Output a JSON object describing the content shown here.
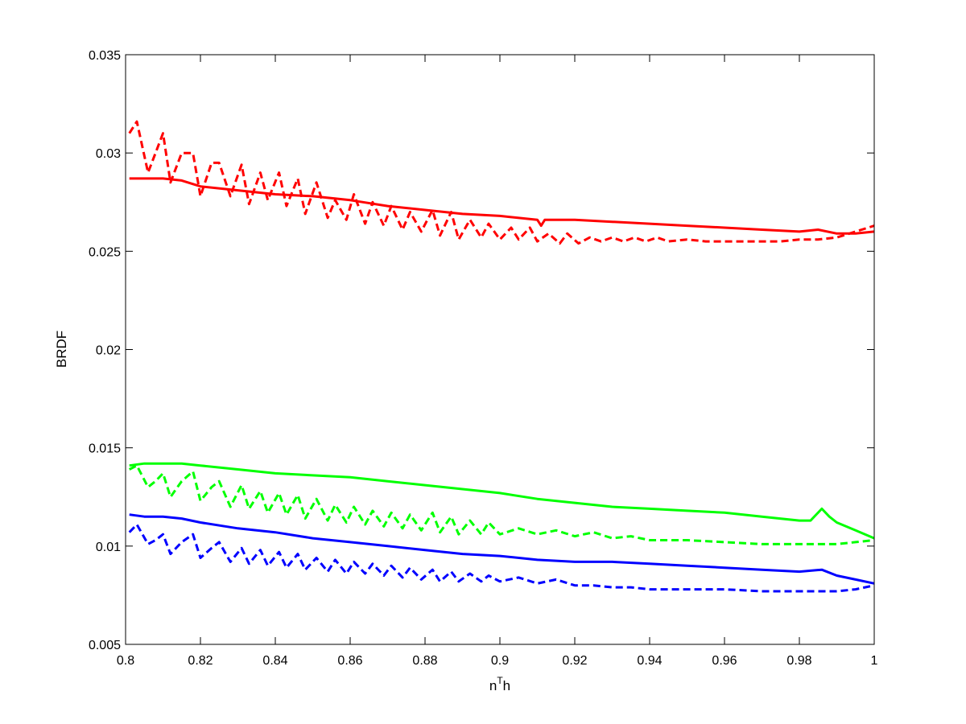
{
  "chart_data": {
    "type": "line",
    "title": "",
    "xlabel": "n",
    "xlabel_sup": "T",
    "xlabel_tail": "h",
    "ylabel": "BRDF",
    "xlim": [
      0.8,
      1.0
    ],
    "ylim": [
      0.005,
      0.035
    ],
    "xticks": [
      0.8,
      0.82,
      0.84,
      0.86,
      0.88,
      0.9,
      0.92,
      0.94,
      0.96,
      0.98,
      1.0
    ],
    "xtick_labels": [
      "0.8",
      "0.82",
      "0.84",
      "0.86",
      "0.88",
      "0.9",
      "0.92",
      "0.94",
      "0.96",
      "0.98",
      "1"
    ],
    "yticks": [
      0.005,
      0.01,
      0.015,
      0.02,
      0.025,
      0.03,
      0.035
    ],
    "ytick_labels": [
      "0.005",
      "0.01",
      "0.015",
      "0.02",
      "0.025",
      "0.03",
      "0.035"
    ],
    "grid": false,
    "legend": "none",
    "series": [
      {
        "color": "#ff0000",
        "style": "solid",
        "x": [
          0.801,
          0.805,
          0.81,
          0.815,
          0.82,
          0.83,
          0.84,
          0.85,
          0.86,
          0.87,
          0.88,
          0.89,
          0.9,
          0.91,
          0.911,
          0.912,
          0.92,
          0.93,
          0.94,
          0.95,
          0.96,
          0.97,
          0.98,
          0.985,
          0.99,
          0.995,
          1.0
        ],
        "y": [
          0.0287,
          0.0287,
          0.0287,
          0.0286,
          0.0283,
          0.0281,
          0.0279,
          0.0278,
          0.0276,
          0.0273,
          0.0271,
          0.0269,
          0.0268,
          0.0266,
          0.0263,
          0.0266,
          0.0266,
          0.0265,
          0.0264,
          0.0263,
          0.0262,
          0.0261,
          0.026,
          0.0261,
          0.0259,
          0.0259,
          0.026
        ]
      },
      {
        "color": "#ff0000",
        "style": "dashed",
        "x": [
          0.801,
          0.803,
          0.806,
          0.808,
          0.81,
          0.812,
          0.815,
          0.818,
          0.82,
          0.823,
          0.825,
          0.828,
          0.831,
          0.833,
          0.836,
          0.838,
          0.841,
          0.843,
          0.846,
          0.848,
          0.851,
          0.854,
          0.856,
          0.859,
          0.861,
          0.864,
          0.866,
          0.869,
          0.871,
          0.874,
          0.876,
          0.879,
          0.882,
          0.884,
          0.887,
          0.889,
          0.892,
          0.895,
          0.897,
          0.9,
          0.903,
          0.905,
          0.908,
          0.91,
          0.913,
          0.916,
          0.918,
          0.921,
          0.924,
          0.927,
          0.93,
          0.933,
          0.936,
          0.939,
          0.942,
          0.945,
          0.95,
          0.955,
          0.96,
          0.965,
          0.97,
          0.975,
          0.98,
          0.985,
          0.99,
          0.995,
          1.0
        ],
        "y": [
          0.031,
          0.0316,
          0.029,
          0.03,
          0.031,
          0.0285,
          0.03,
          0.03,
          0.0278,
          0.0295,
          0.0295,
          0.0278,
          0.0294,
          0.0274,
          0.029,
          0.0276,
          0.029,
          0.0273,
          0.0287,
          0.0269,
          0.0285,
          0.0267,
          0.0276,
          0.0266,
          0.0279,
          0.0264,
          0.0275,
          0.0263,
          0.0273,
          0.0261,
          0.027,
          0.026,
          0.0271,
          0.0258,
          0.027,
          0.0256,
          0.0266,
          0.0257,
          0.0264,
          0.0256,
          0.0262,
          0.0256,
          0.0262,
          0.0255,
          0.0259,
          0.0254,
          0.0259,
          0.0254,
          0.0257,
          0.0255,
          0.0257,
          0.0255,
          0.0257,
          0.0255,
          0.0257,
          0.0255,
          0.0256,
          0.0255,
          0.0255,
          0.0255,
          0.0255,
          0.0255,
          0.0256,
          0.0256,
          0.0257,
          0.026,
          0.0263
        ]
      },
      {
        "color": "#00ff00",
        "style": "solid",
        "x": [
          0.801,
          0.805,
          0.81,
          0.815,
          0.82,
          0.83,
          0.84,
          0.85,
          0.86,
          0.87,
          0.88,
          0.89,
          0.9,
          0.91,
          0.92,
          0.93,
          0.94,
          0.95,
          0.96,
          0.97,
          0.98,
          0.983,
          0.986,
          0.988,
          0.99,
          0.995,
          1.0
        ],
        "y": [
          0.0141,
          0.0142,
          0.0142,
          0.0142,
          0.0141,
          0.0139,
          0.0137,
          0.0136,
          0.0135,
          0.0133,
          0.0131,
          0.0129,
          0.0127,
          0.0124,
          0.0122,
          0.012,
          0.0119,
          0.0118,
          0.0117,
          0.0115,
          0.0113,
          0.0113,
          0.0119,
          0.0115,
          0.0112,
          0.0108,
          0.0104
        ]
      },
      {
        "color": "#00ff00",
        "style": "dashed",
        "x": [
          0.801,
          0.803,
          0.806,
          0.808,
          0.81,
          0.812,
          0.815,
          0.818,
          0.82,
          0.823,
          0.825,
          0.828,
          0.831,
          0.833,
          0.836,
          0.838,
          0.841,
          0.843,
          0.846,
          0.848,
          0.851,
          0.854,
          0.856,
          0.859,
          0.861,
          0.864,
          0.866,
          0.869,
          0.871,
          0.874,
          0.876,
          0.879,
          0.882,
          0.884,
          0.887,
          0.889,
          0.892,
          0.895,
          0.897,
          0.9,
          0.905,
          0.91,
          0.915,
          0.92,
          0.925,
          0.93,
          0.935,
          0.94,
          0.95,
          0.96,
          0.97,
          0.98,
          0.985,
          0.99,
          0.995,
          1.0
        ],
        "y": [
          0.0139,
          0.0141,
          0.013,
          0.0133,
          0.0137,
          0.0125,
          0.0133,
          0.0138,
          0.0123,
          0.013,
          0.0133,
          0.012,
          0.0131,
          0.0119,
          0.0128,
          0.0117,
          0.0127,
          0.0116,
          0.0126,
          0.0114,
          0.0124,
          0.0113,
          0.0121,
          0.0112,
          0.012,
          0.0111,
          0.0118,
          0.011,
          0.0117,
          0.0109,
          0.0116,
          0.0108,
          0.0117,
          0.0107,
          0.0115,
          0.0106,
          0.0113,
          0.0106,
          0.0112,
          0.0106,
          0.0109,
          0.0106,
          0.0108,
          0.0105,
          0.0107,
          0.0104,
          0.0105,
          0.0103,
          0.0103,
          0.0102,
          0.0101,
          0.0101,
          0.0101,
          0.0101,
          0.0102,
          0.0103
        ]
      },
      {
        "color": "#0000ff",
        "style": "solid",
        "x": [
          0.801,
          0.805,
          0.81,
          0.815,
          0.82,
          0.83,
          0.84,
          0.85,
          0.86,
          0.87,
          0.88,
          0.89,
          0.9,
          0.91,
          0.92,
          0.93,
          0.94,
          0.95,
          0.96,
          0.97,
          0.98,
          0.986,
          0.99,
          0.995,
          1.0
        ],
        "y": [
          0.0116,
          0.0115,
          0.0115,
          0.0114,
          0.0112,
          0.0109,
          0.0107,
          0.0104,
          0.0102,
          0.01,
          0.0098,
          0.0096,
          0.0095,
          0.0093,
          0.0092,
          0.0092,
          0.0091,
          0.009,
          0.0089,
          0.0088,
          0.0087,
          0.0088,
          0.0085,
          0.0083,
          0.0081
        ]
      },
      {
        "color": "#0000ff",
        "style": "dashed",
        "x": [
          0.801,
          0.803,
          0.806,
          0.808,
          0.81,
          0.812,
          0.815,
          0.818,
          0.82,
          0.823,
          0.825,
          0.828,
          0.831,
          0.833,
          0.836,
          0.838,
          0.841,
          0.843,
          0.846,
          0.848,
          0.851,
          0.854,
          0.856,
          0.859,
          0.861,
          0.864,
          0.866,
          0.869,
          0.871,
          0.874,
          0.876,
          0.879,
          0.882,
          0.884,
          0.887,
          0.889,
          0.892,
          0.895,
          0.897,
          0.9,
          0.905,
          0.91,
          0.915,
          0.92,
          0.925,
          0.93,
          0.935,
          0.94,
          0.95,
          0.96,
          0.97,
          0.98,
          0.985,
          0.99,
          0.995,
          1.0
        ],
        "y": [
          0.0107,
          0.0111,
          0.0101,
          0.0103,
          0.0106,
          0.0096,
          0.0102,
          0.0106,
          0.0094,
          0.0099,
          0.0102,
          0.0092,
          0.0099,
          0.0091,
          0.0098,
          0.009,
          0.0097,
          0.0089,
          0.0096,
          0.0088,
          0.0094,
          0.0087,
          0.0093,
          0.0086,
          0.0092,
          0.0086,
          0.0091,
          0.0085,
          0.009,
          0.0084,
          0.0089,
          0.0083,
          0.0088,
          0.0082,
          0.0087,
          0.0082,
          0.0086,
          0.0082,
          0.0085,
          0.0082,
          0.0084,
          0.0081,
          0.0083,
          0.008,
          0.008,
          0.0079,
          0.0079,
          0.0078,
          0.0078,
          0.0078,
          0.0077,
          0.0077,
          0.0077,
          0.0077,
          0.0078,
          0.008
        ]
      }
    ]
  }
}
